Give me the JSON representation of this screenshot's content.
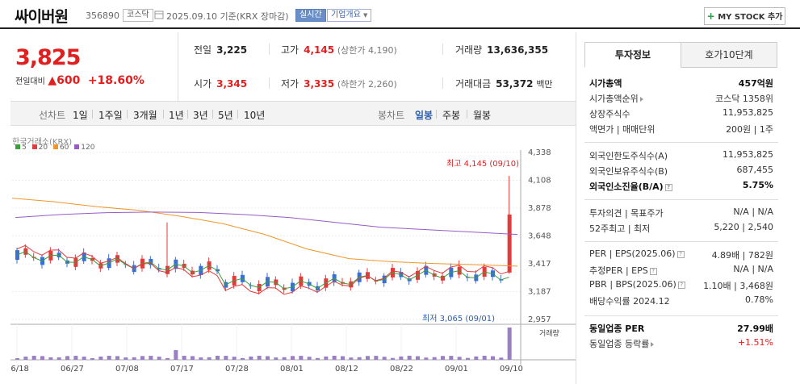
{
  "header": {
    "name": "싸이버원",
    "code": "356890",
    "market": "코스닥",
    "as_of": "2025.09.10  기준(KRX 장마감)",
    "realtime_label": "실시간",
    "overview_label": "기업개요",
    "mystock_label": "MY STOCK 추가"
  },
  "price": {
    "current": "3,825",
    "change_label": "전일대비",
    "change_value": "600",
    "change_pct": "+18.60%"
  },
  "stats": {
    "prev_label": "전일",
    "prev": "3,225",
    "high_label": "고가",
    "high": "4,145",
    "upper_limit": "(상한가 4,190)",
    "volume_label": "거래량",
    "volume": "13,636,355",
    "open_label": "시가",
    "open": "3,345",
    "low_label": "저가",
    "low": "3,335",
    "lower_limit": "(하한가 2,260)",
    "amount_label": "거래대금",
    "amount": "53,372",
    "amount_unit": "백만"
  },
  "periods": {
    "line_label": "선차트",
    "line_items": [
      "1일",
      "1주일",
      "3개월",
      "1년",
      "3년",
      "5년",
      "10년"
    ],
    "candle_label": "봉차트",
    "candle_items": [
      "일봉",
      "주봉",
      "월봉"
    ],
    "active": "일봉"
  },
  "chart": {
    "exchange": "한국거래소(KRX)",
    "legend": [
      {
        "label": "5",
        "color": "#3aa03a"
      },
      {
        "label": "20",
        "color": "#e23b3b"
      },
      {
        "label": "60",
        "color": "#f0962a"
      },
      {
        "label": "120",
        "color": "#9a5bc9"
      }
    ],
    "high_annotation": "최고 4,145 (09/10)",
    "low_annotation": "최저 3,065 (09/01)",
    "volume_label": "거래량"
  },
  "chart_data": {
    "type": "candlestick",
    "ylim": [
      2957,
      4338
    ],
    "yticks": [
      4338,
      4108,
      3878,
      3648,
      3417,
      3187,
      2957
    ],
    "xticks": [
      "06/18",
      "06/27",
      "07/08",
      "07/17",
      "07/28",
      "08/01",
      "08/12",
      "08/22",
      "09/01",
      "09/10"
    ],
    "ma60_samples": [
      3960,
      3930,
      3890,
      3860,
      3810,
      3750,
      3660,
      3540,
      3460,
      3435,
      3420,
      3410,
      3398
    ],
    "ma120_samples": [
      3800,
      3825,
      3840,
      3845,
      3842,
      3825,
      3800,
      3760,
      3720,
      3700,
      3680,
      3660
    ],
    "last_candle": {
      "open": 3345,
      "high": 4145,
      "low": 3335,
      "close": 3825
    }
  },
  "right": {
    "tabs": [
      "투자정보",
      "호가10단계"
    ],
    "rows": [
      {
        "label": "시가총액",
        "value": "457억원",
        "bold": true
      },
      {
        "label": "시가총액순위",
        "value": "코스닥 1358위"
      },
      {
        "label": "상장주식수",
        "value": "11,953,825"
      },
      {
        "label": "액면가 | 매매단위",
        "value": "200원 | 1주"
      },
      {
        "label": "외국인한도주식수(A)",
        "value": "11,953,825"
      },
      {
        "label": "외국인보유주식수(B)",
        "value": "687,455"
      },
      {
        "label": "외국인소진율(B/A)",
        "value": "5.75%",
        "bold": true
      },
      {
        "label": "투자의견 | 목표주가",
        "value": "N/A | N/A"
      },
      {
        "label": "52주최고 | 최저",
        "value": "5,220 | 2,540"
      },
      {
        "label": "PER | EPS(2025.06)",
        "value": "4.89배 | 782원"
      },
      {
        "label": "추정PER | EPS",
        "value": "N/A | N/A"
      },
      {
        "label": "PBR | BPS(2025.06)",
        "value": "1.10배 | 3,468원"
      },
      {
        "label": "배당수익률 2024.12",
        "value": "0.78%"
      },
      {
        "label": "동일업종 PER",
        "value": "27.99배",
        "bold": true
      },
      {
        "label": "동일업종 등락률",
        "value": "+1.51%",
        "red": true
      }
    ]
  }
}
